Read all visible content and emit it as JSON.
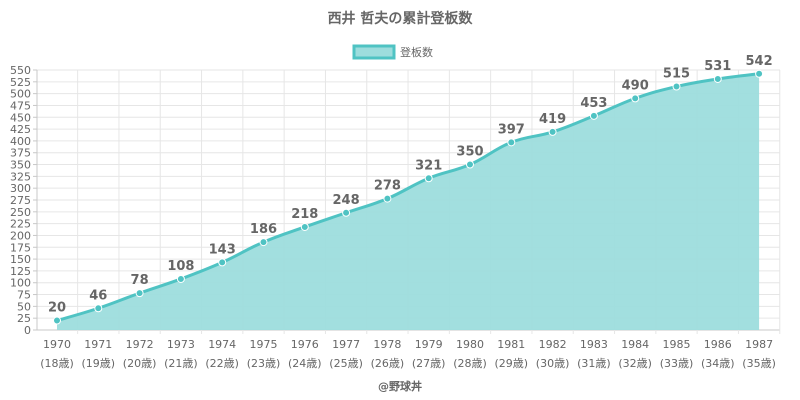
{
  "chart_data": {
    "type": "area",
    "title": "西井 哲夫の累計登板数",
    "legend": {
      "label": "登板数",
      "placement": "top-center"
    },
    "credit": "@野球丼",
    "x": [
      "1970",
      "1971",
      "1972",
      "1973",
      "1974",
      "1975",
      "1976",
      "1977",
      "1978",
      "1979",
      "1980",
      "1981",
      "1982",
      "1983",
      "1984",
      "1985",
      "1986",
      "1987"
    ],
    "x_sub": [
      "(18歳)",
      "(19歳)",
      "(20歳)",
      "(21歳)",
      "(22歳)",
      "(23歳)",
      "(24歳)",
      "(25歳)",
      "(26歳)",
      "(27歳)",
      "(28歳)",
      "(29歳)",
      "(30歳)",
      "(31歳)",
      "(32歳)",
      "(33歳)",
      "(34歳)",
      "(35歳)"
    ],
    "series": [
      {
        "name": "登板数",
        "values": [
          20,
          46,
          78,
          108,
          143,
          186,
          218,
          248,
          278,
          321,
          350,
          397,
          419,
          453,
          490,
          515,
          531,
          542
        ]
      }
    ],
    "ylim": [
      0,
      550
    ],
    "ytick_step": 25,
    "grid": true,
    "colors": {
      "line": "#4fc3c3",
      "fill": "#9ddddd",
      "text": "#666666"
    }
  }
}
